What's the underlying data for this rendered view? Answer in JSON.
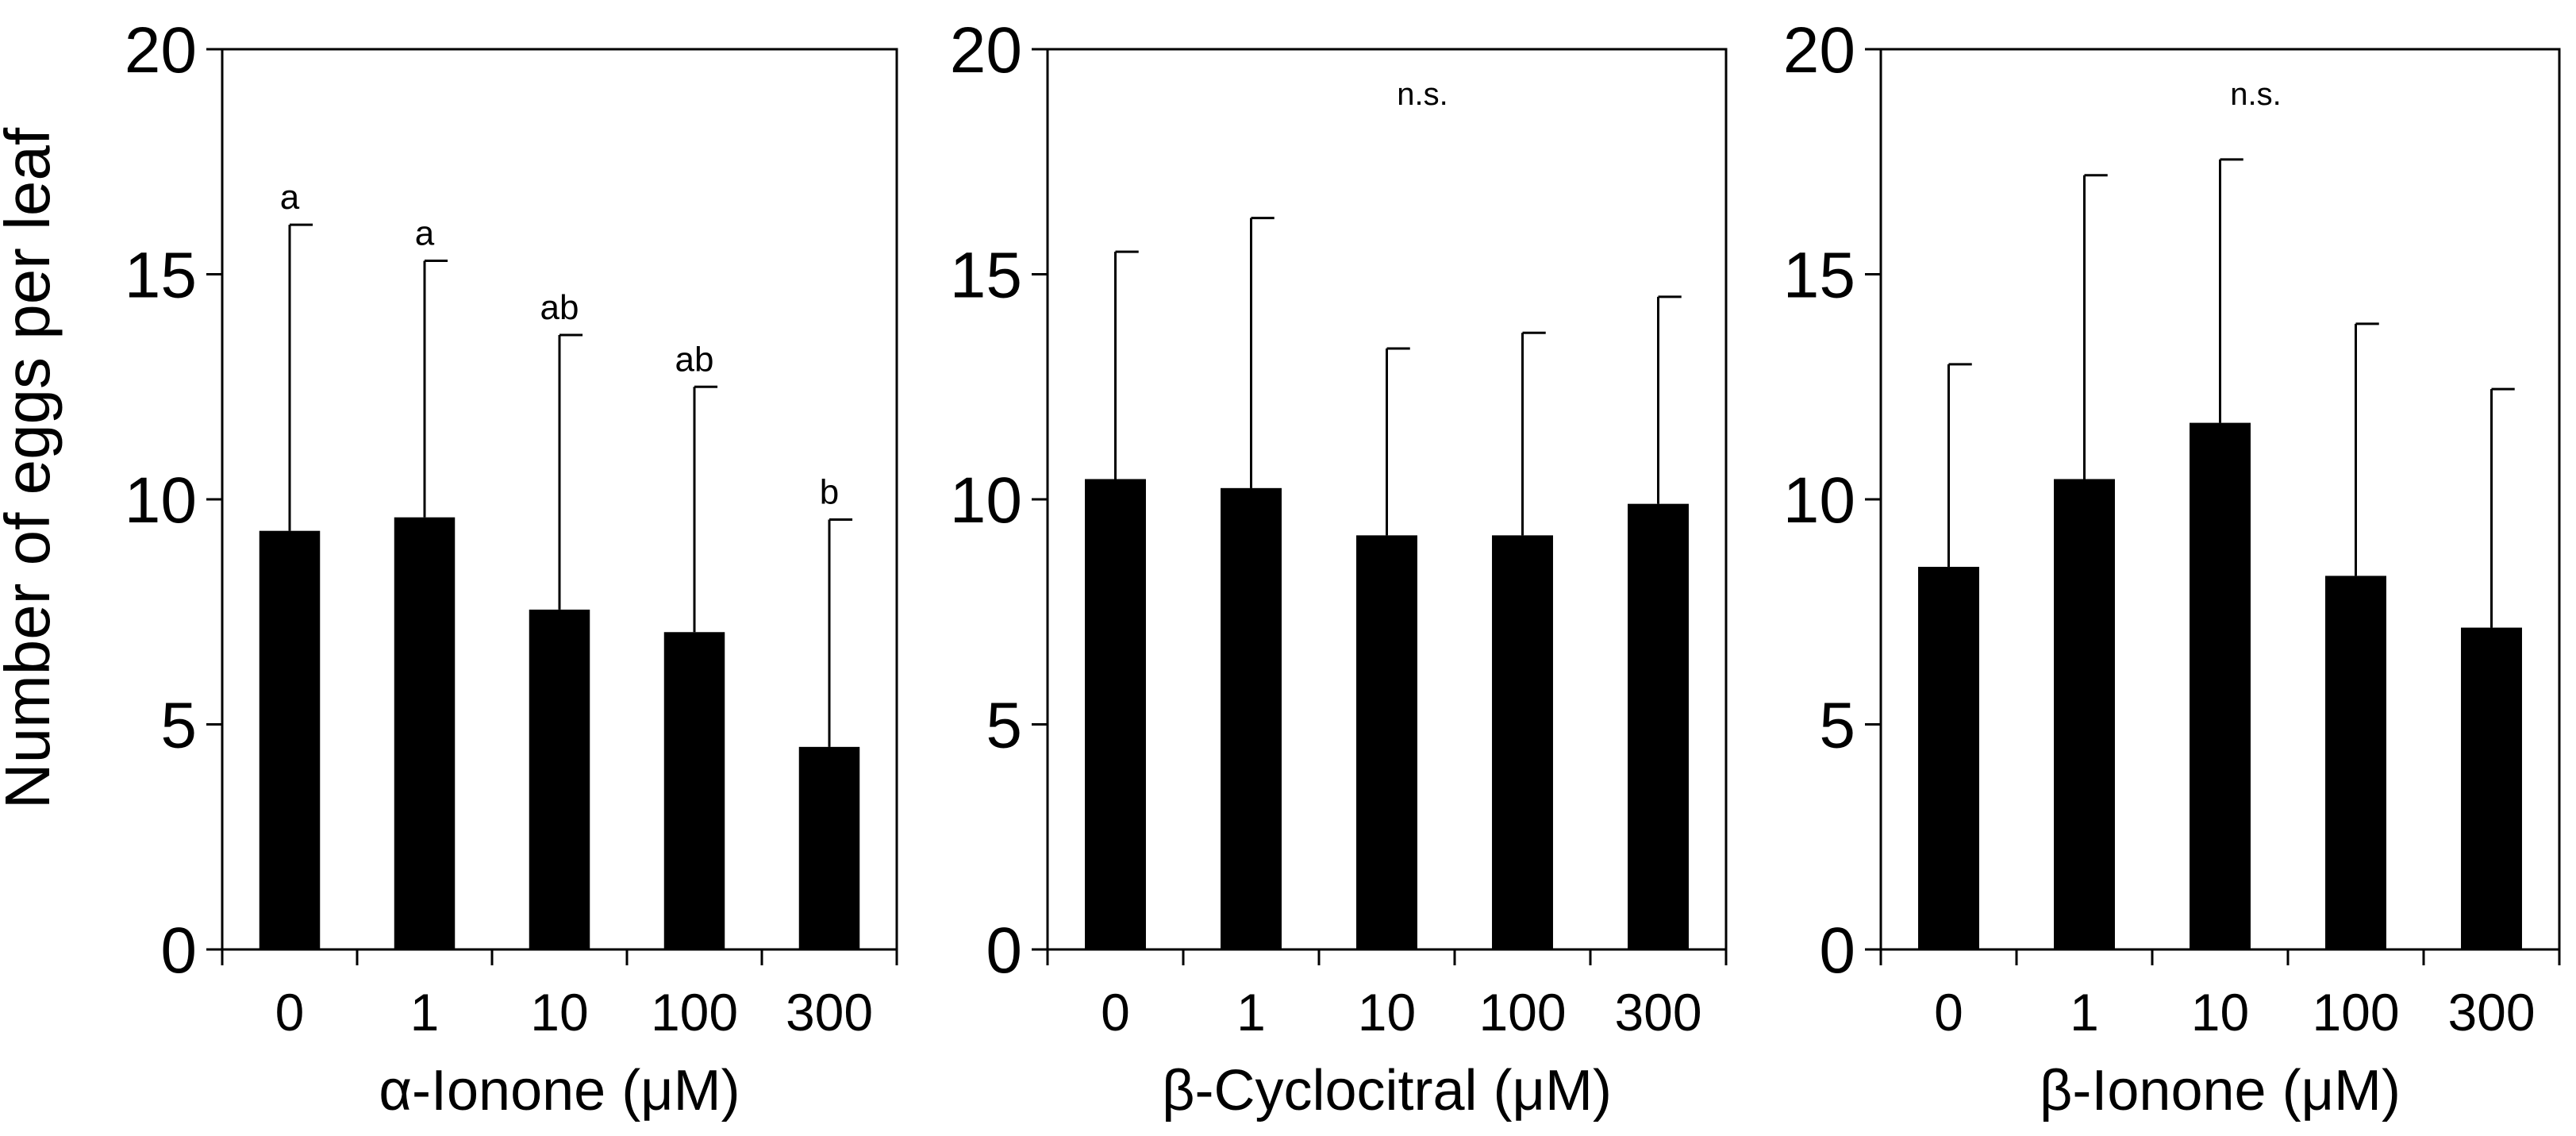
{
  "figure": {
    "ylabel": "Number of eggs per leaf"
  },
  "chart_data": [
    {
      "type": "bar",
      "title": "",
      "xlabel": "α-Ionone (μM)",
      "ylabel": "Number of eggs per leaf",
      "categories": [
        "0",
        "1",
        "10",
        "100",
        "300"
      ],
      "values": [
        9.3,
        9.6,
        7.55,
        7.05,
        4.5
      ],
      "error_upper": [
        16.1,
        15.3,
        13.65,
        12.5,
        9.55
      ],
      "significance": [
        "a",
        "a",
        "ab",
        "ab",
        "b"
      ],
      "annotation": "",
      "ylim": [
        0,
        20
      ],
      "yticks": [
        "0",
        "5",
        "10",
        "15",
        "20"
      ]
    },
    {
      "type": "bar",
      "title": "",
      "xlabel": "β-Cyclocitral (μM)",
      "ylabel": "Number of eggs per leaf",
      "categories": [
        "0",
        "1",
        "10",
        "100",
        "300"
      ],
      "values": [
        10.45,
        10.25,
        9.2,
        9.2,
        9.9
      ],
      "error_upper": [
        15.5,
        16.25,
        13.35,
        13.7,
        14.5
      ],
      "significance": [
        "",
        "",
        "",
        "",
        ""
      ],
      "annotation": "n.s.",
      "ylim": [
        0,
        20
      ],
      "yticks": [
        "0",
        "5",
        "10",
        "15",
        "20"
      ]
    },
    {
      "type": "bar",
      "title": "",
      "xlabel": "β-Ionone (μM)",
      "ylabel": "Number of eggs per leaf",
      "categories": [
        "0",
        "1",
        "10",
        "100",
        "300"
      ],
      "values": [
        8.5,
        10.45,
        11.7,
        8.3,
        7.15
      ],
      "error_upper": [
        13.0,
        17.2,
        17.55,
        13.9,
        12.45
      ],
      "significance": [
        "",
        "",
        "",
        "",
        ""
      ],
      "annotation": "n.s.",
      "ylim": [
        0,
        20
      ],
      "yticks": [
        "0",
        "5",
        "10",
        "15",
        "20"
      ]
    }
  ]
}
